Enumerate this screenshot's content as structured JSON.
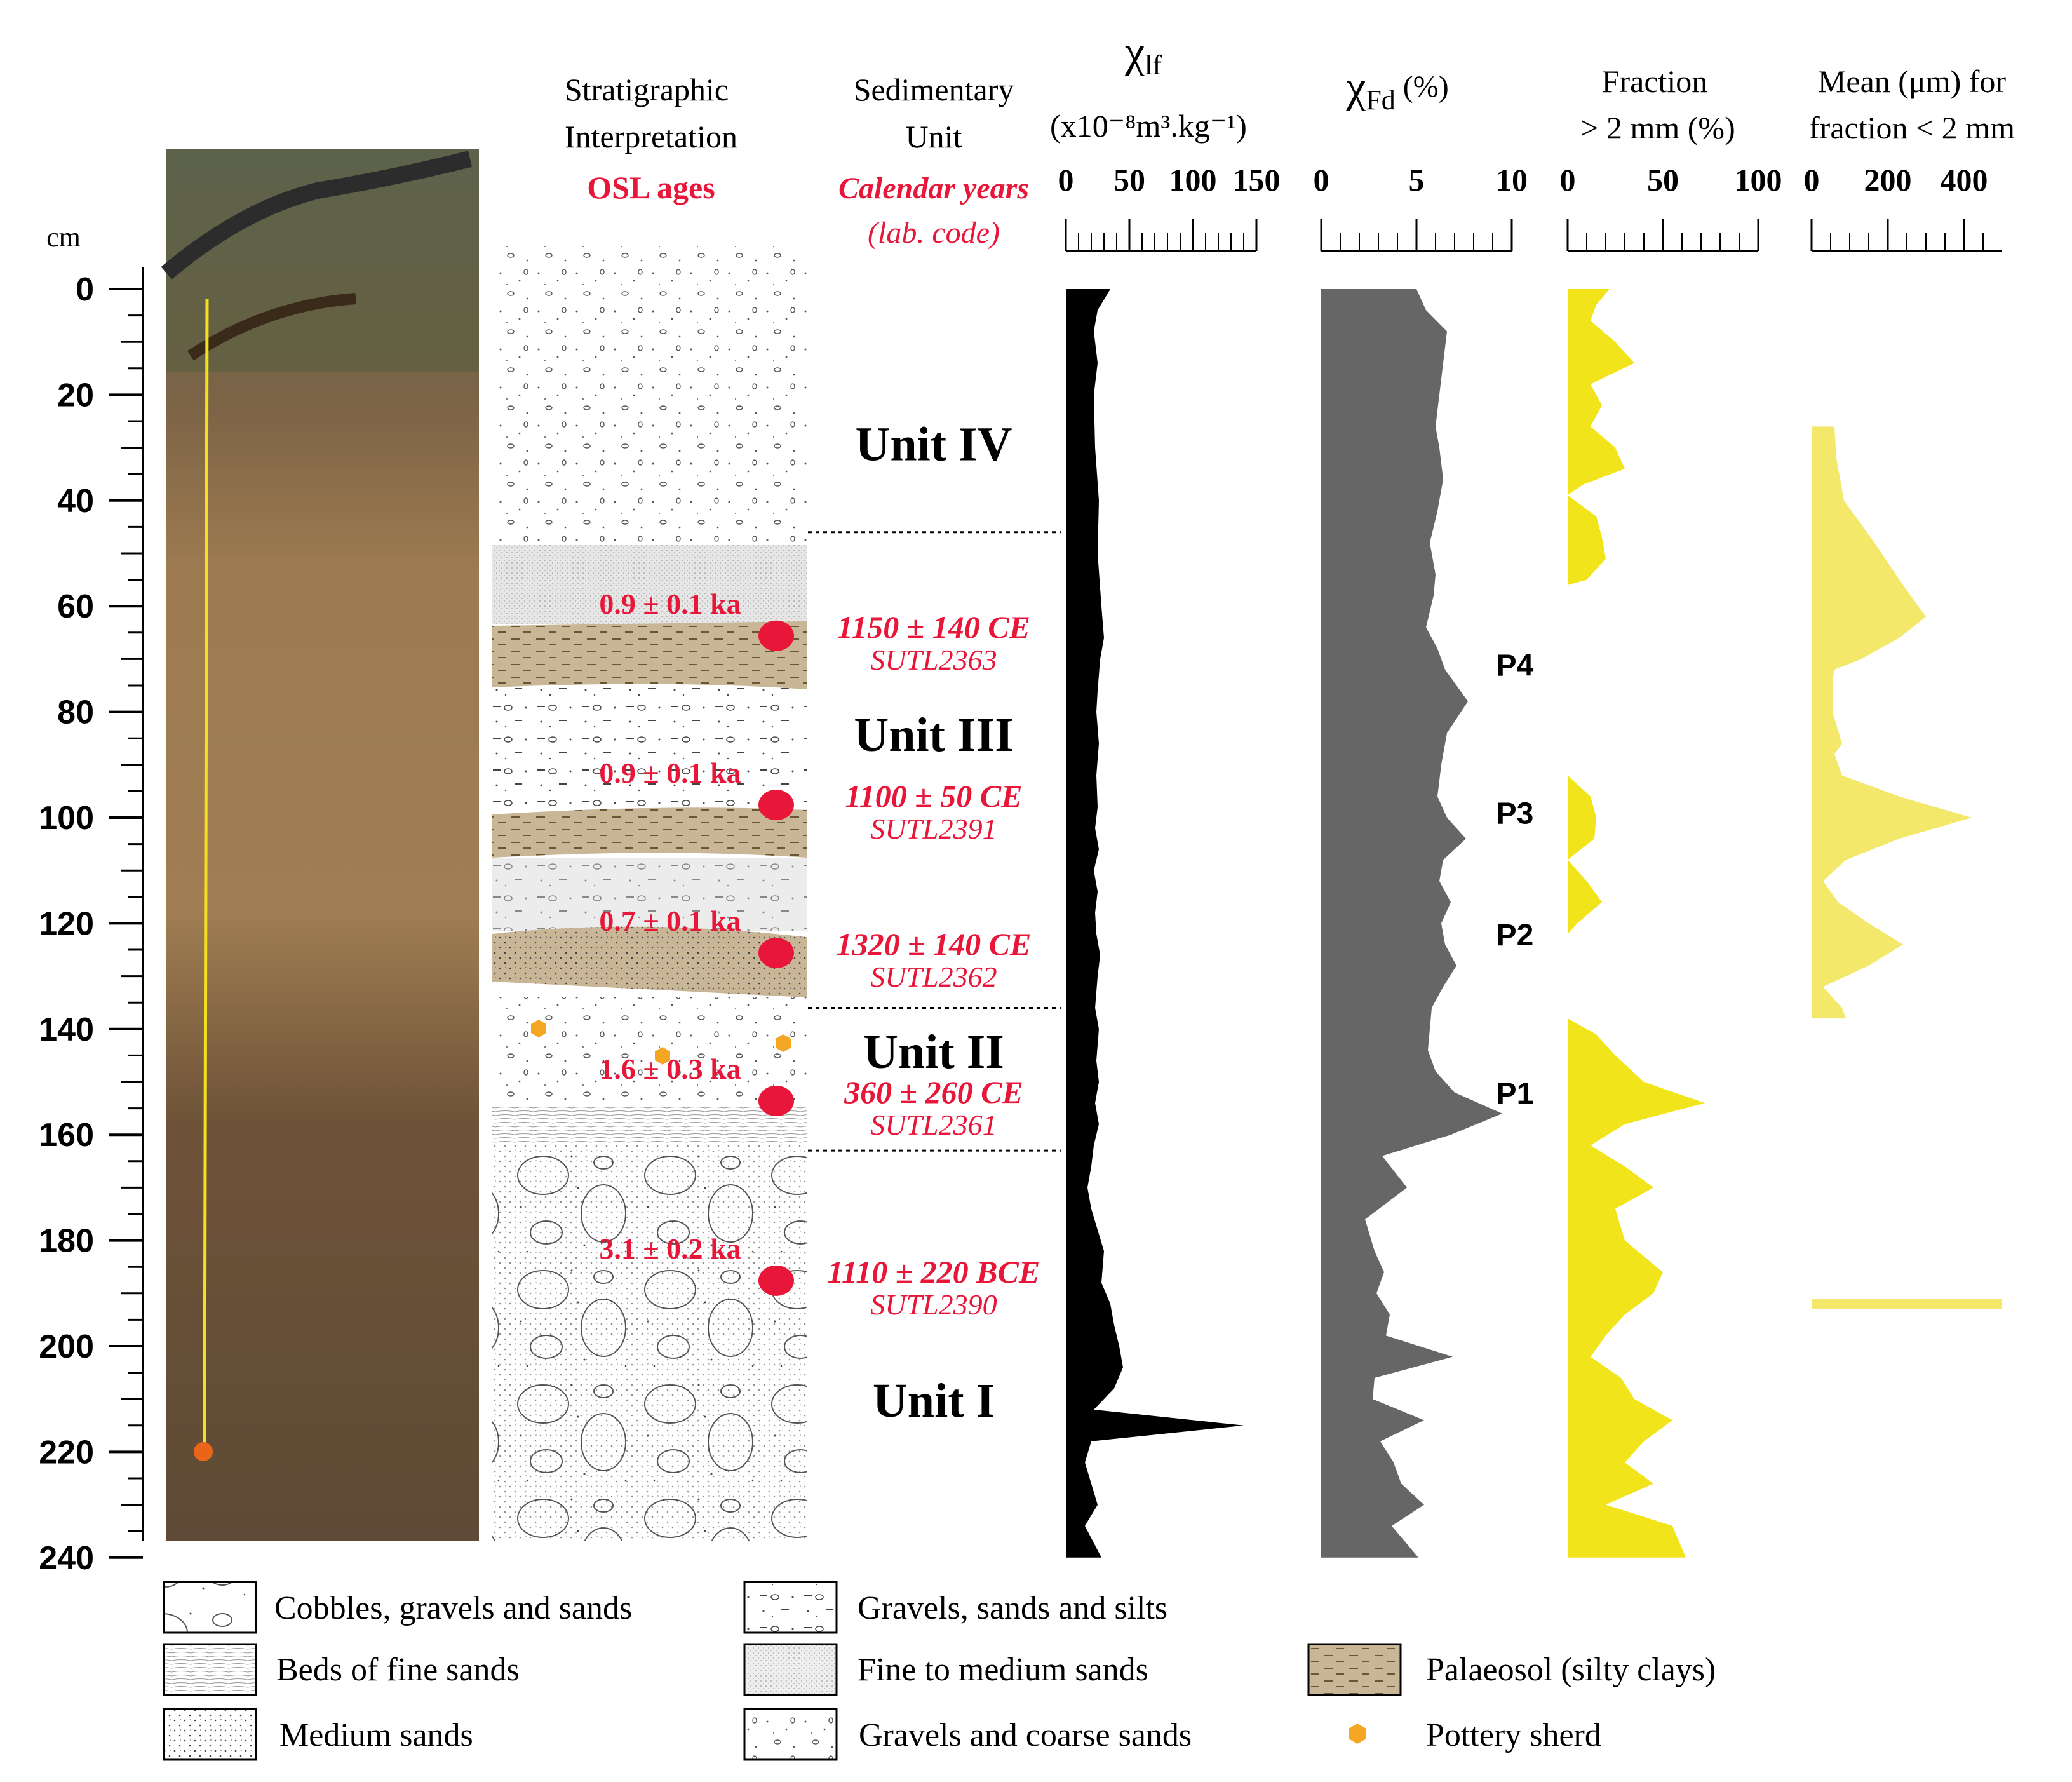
{
  "colors": {
    "red": "#e8173a",
    "yellow": "#f2e41a",
    "lightyellow": "#f4e86a",
    "grey": "#666666",
    "black": "#000000",
    "soil": "#8f6a43",
    "palaeosol": "#c9b697"
  },
  "headers": {
    "strat_line1": "Stratigraphic",
    "strat_line2": "Interpretation",
    "strat_sub": "OSL ages",
    "sed_line1": "Sedimentary",
    "sed_line2": "Unit",
    "sed_sub1": "Calendar years",
    "sed_sub2": "(lab. code)",
    "chi_lf_symbol": "χ",
    "chi_lf_sub": "lf",
    "chi_lf_units": "(x10⁻⁸m³.kg⁻¹)",
    "chi_fd_symbol": "χ",
    "chi_fd_sub": "Fd",
    "chi_fd_units": "(%)",
    "frac_line1": "Fraction",
    "frac_line2": "> 2 mm (%)",
    "mean_line1": "Mean (μm) for",
    "mean_line2": "fraction < 2 mm"
  },
  "depth_axis": {
    "unit": "cm",
    "ticks": [
      "0",
      "20",
      "40",
      "60",
      "80",
      "100",
      "120",
      "140",
      "160",
      "180",
      "200",
      "220",
      "240"
    ]
  },
  "units": [
    {
      "label": "Unit IV",
      "depth": 29
    },
    {
      "label": "Unit III",
      "depth": 84
    },
    {
      "label": "Unit II",
      "depth": 144
    },
    {
      "label": "Unit I",
      "depth": 210
    }
  ],
  "unit_boundaries": [
    46,
    136,
    163
  ],
  "osl": [
    {
      "age": "0.9 ± 0.1 ka",
      "depth": 65,
      "cal": "1150 ± 140 CE",
      "lab": "SUTL2363"
    },
    {
      "age": "0.9 ± 0.1 ka",
      "depth": 97,
      "cal": "1100 ± 50 CE",
      "lab": "SUTL2391"
    },
    {
      "age": "0.7 ± 0.1 ka",
      "depth": 125,
      "cal": "1320 ± 140 CE",
      "lab": "SUTL2362"
    },
    {
      "age": "1.6 ± 0.3 ka",
      "depth": 153,
      "cal": "360 ± 260 CE",
      "lab": "SUTL2361"
    },
    {
      "age": "3.1 ± 0.2 ka",
      "depth": 187,
      "cal": "1110 ± 220 BCE",
      "lab": "SUTL2390"
    }
  ],
  "paleosols": [
    {
      "label": "P4",
      "depth": 71
    },
    {
      "label": "P3",
      "depth": 99
    },
    {
      "label": "P2",
      "depth": 122
    },
    {
      "label": "P1",
      "depth": 152
    }
  ],
  "chart_data": [
    {
      "type": "area",
      "series": [
        {
          "name": "χlf",
          "x_range": [
            0,
            150
          ],
          "ticks": [
            "0",
            "50",
            "100",
            "150"
          ],
          "depth": [
            0,
            4,
            8,
            14,
            20,
            30,
            40,
            50,
            60,
            66,
            70,
            76,
            80,
            86,
            92,
            98,
            102,
            106,
            110,
            114,
            118,
            122,
            126,
            130,
            136,
            140,
            146,
            150,
            154,
            158,
            162,
            166,
            170,
            174,
            178,
            182,
            188,
            192,
            196,
            200,
            204,
            208,
            212,
            215,
            218,
            222,
            226,
            230,
            234,
            240
          ],
          "values": [
            35,
            25,
            22,
            25,
            22,
            23,
            26,
            25,
            28,
            30,
            27,
            25,
            24,
            26,
            24,
            25,
            23,
            26,
            22,
            25,
            23,
            24,
            27,
            25,
            23,
            26,
            24,
            26,
            23,
            26,
            22,
            20,
            17,
            20,
            25,
            30,
            28,
            35,
            38,
            42,
            45,
            38,
            22,
            140,
            20,
            15,
            20,
            25,
            15,
            28
          ]
        }
      ]
    },
    {
      "type": "area",
      "series": [
        {
          "name": "χFd",
          "x_range": [
            0,
            10
          ],
          "ticks": [
            "0",
            "5",
            "10"
          ],
          "depth": [
            0,
            4,
            8,
            14,
            20,
            26,
            30,
            36,
            42,
            48,
            54,
            58,
            64,
            68,
            72,
            78,
            84,
            90,
            96,
            100,
            104,
            108,
            112,
            116,
            120,
            124,
            128,
            132,
            136,
            140,
            144,
            148,
            152,
            156,
            160,
            164,
            170,
            176,
            182,
            186,
            190,
            194,
            198,
            202,
            206,
            210,
            214,
            218,
            222,
            226,
            230,
            234,
            240
          ],
          "values": [
            5,
            5.5,
            6.6,
            6.4,
            6.2,
            6,
            6.2,
            6.4,
            6.1,
            5.7,
            6,
            5.9,
            5.5,
            6.1,
            6.5,
            7.7,
            6.6,
            6.3,
            6.1,
            6.6,
            7.6,
            6.4,
            6.2,
            6.8,
            6.3,
            6.5,
            7.1,
            6.4,
            5.8,
            5.7,
            5.6,
            6,
            7,
            9.5,
            6.8,
            3.2,
            4.5,
            2.3,
            2.8,
            3.3,
            2.9,
            3.6,
            3.4,
            6.9,
            2.8,
            2.7,
            5.4,
            3.1,
            3.8,
            4.2,
            5.4,
            3.7,
            5.1
          ]
        }
      ]
    },
    {
      "type": "area",
      "series": [
        {
          "name": "Fraction > 2 mm (%)",
          "x_range": [
            0,
            100
          ],
          "ticks": [
            "0",
            "50",
            "100"
          ],
          "depth": [
            0,
            3,
            6,
            10,
            14,
            18,
            22,
            26,
            30,
            34,
            37,
            39,
            43,
            47,
            51,
            55,
            56,
            58,
            62,
            70,
            78,
            86,
            92,
            96,
            100,
            104,
            108,
            112,
            116,
            120,
            122,
            130,
            136,
            138,
            141,
            145,
            150,
            154,
            158,
            162,
            166,
            170,
            174,
            180,
            186,
            190,
            194,
            198,
            202,
            206,
            210,
            214,
            218,
            222,
            226,
            230,
            234,
            240
          ],
          "values": [
            22,
            15,
            12,
            25,
            35,
            12,
            18,
            12,
            25,
            30,
            8,
            0,
            15,
            18,
            20,
            10,
            0,
            0,
            0,
            0,
            0,
            0,
            0,
            12,
            15,
            14,
            0,
            10,
            18,
            5,
            0,
            0,
            0,
            0,
            15,
            25,
            40,
            72,
            30,
            12,
            30,
            45,
            25,
            30,
            50,
            45,
            30,
            20,
            12,
            28,
            35,
            55,
            40,
            30,
            45,
            20,
            55,
            62
          ]
        }
      ]
    },
    {
      "type": "area",
      "series": [
        {
          "name": "Mean (μm) for fraction < 2 mm",
          "x_range": [
            0,
            500
          ],
          "ticks": [
            "0",
            "200",
            "400"
          ],
          "depth": [
            26,
            32,
            40,
            48,
            56,
            62,
            66,
            70,
            72,
            74,
            76,
            80,
            86,
            88,
            92,
            96,
            100,
            104,
            108,
            112,
            116,
            120,
            124,
            128,
            132,
            136,
            138
          ],
          "values": [
            60,
            65,
            85,
            165,
            240,
            300,
            230,
            130,
            60,
            55,
            55,
            55,
            80,
            60,
            80,
            230,
            420,
            230,
            90,
            30,
            70,
            150,
            240,
            150,
            30,
            80,
            90
          ]
        },
        {
          "name": "Mean (μm) single",
          "depth": [
            192
          ],
          "values": [
            500
          ]
        }
      ]
    }
  ],
  "legend": [
    {
      "key": "cobbles",
      "label": "Cobbles, gravels and sands"
    },
    {
      "key": "gss",
      "label": "Gravels, sands and silts"
    },
    {
      "key": "fine_beds",
      "label": "Beds of fine sands"
    },
    {
      "key": "fine_med",
      "label": "Fine to medium sands"
    },
    {
      "key": "palaeosol",
      "label": "Palaeosol (silty clays)"
    },
    {
      "key": "medium",
      "label": "Medium sands"
    },
    {
      "key": "gcs",
      "label": "Gravels and coarse sands"
    },
    {
      "key": "pottery",
      "label": "Pottery sherd"
    }
  ]
}
